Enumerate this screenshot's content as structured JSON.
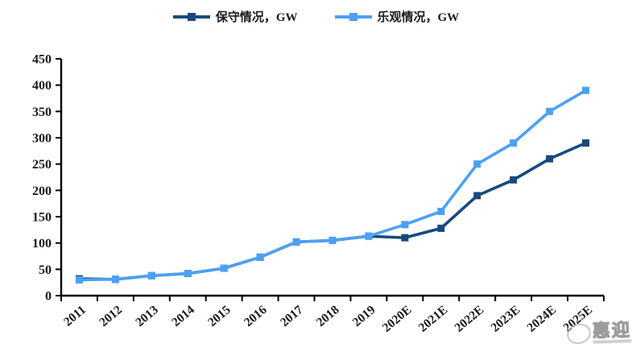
{
  "page": {
    "background": "#ffffff"
  },
  "legend": {
    "items": [
      {
        "label": "保守情况，GW",
        "color": "#17497E"
      },
      {
        "label": "乐观情况，GW",
        "color": "#4DA0F4"
      }
    ]
  },
  "watermark": {
    "text": "惠迎"
  },
  "chart_data": {
    "type": "line",
    "title": "",
    "xlabel": "",
    "ylabel": "",
    "categories": [
      "2011",
      "2012",
      "2013",
      "2014",
      "2015",
      "2016",
      "2017",
      "2018",
      "2019",
      "2020E",
      "2021E",
      "2022E",
      "2023E",
      "2024E",
      "2025E"
    ],
    "series": [
      {
        "name": "保守情况，GW",
        "color": "#17497E",
        "marker": "square",
        "values": [
          32,
          31,
          38,
          42,
          52,
          73,
          102,
          105,
          113,
          110,
          128,
          190,
          220,
          260,
          290
        ]
      },
      {
        "name": "乐观情况，GW",
        "color": "#4DA0F4",
        "marker": "square",
        "values": [
          30,
          31,
          38,
          42,
          52,
          73,
          102,
          105,
          113,
          135,
          160,
          250,
          290,
          350,
          390
        ]
      }
    ],
    "ylim": [
      0,
      450
    ],
    "ytick_step": 50,
    "grid": false,
    "legend_position": "top",
    "axis_color": "#000000",
    "tick_label_color": "#1a1a1a"
  }
}
